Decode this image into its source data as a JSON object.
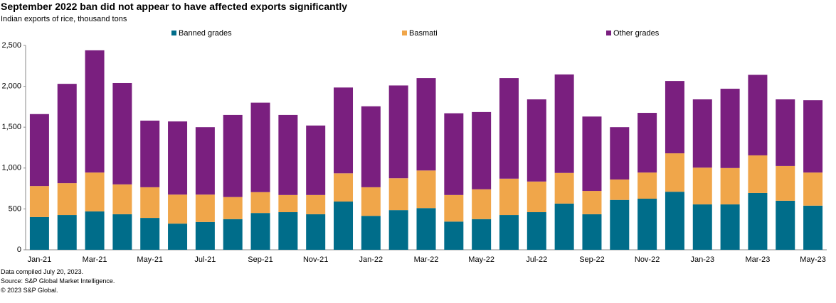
{
  "chart_data": {
    "type": "stacked_bar",
    "title": "September 2022 ban did not appear to have affected exports significantly",
    "subtitle": "Indian  exports of rice, thousand tons",
    "categories": [
      "Jan-21",
      null,
      "Mar-21",
      null,
      "May-21",
      null,
      "Jul-21",
      null,
      "Sep-21",
      null,
      "Nov-21",
      null,
      "Jan-22",
      null,
      "Mar-22",
      null,
      "May-22",
      null,
      "Jul-22",
      null,
      "Sep-22",
      null,
      "Nov-22",
      null,
      "Jan-23",
      null,
      "Mar-23",
      null,
      "May-23"
    ],
    "series": [
      {
        "name": "Banned grades",
        "color": "#006d8a",
        "values": [
          400,
          425,
          470,
          435,
          390,
          320,
          340,
          375,
          450,
          460,
          435,
          590,
          415,
          485,
          510,
          345,
          375,
          425,
          460,
          565,
          435,
          610,
          625,
          710,
          555,
          555,
          695,
          600,
          540
        ]
      },
      {
        "name": "Basmati",
        "color": "#f0a64a",
        "values": [
          380,
          390,
          475,
          365,
          375,
          355,
          335,
          270,
          255,
          210,
          235,
          345,
          350,
          390,
          460,
          325,
          365,
          445,
          375,
          375,
          285,
          250,
          320,
          470,
          450,
          445,
          460,
          425,
          405
        ]
      },
      {
        "name": "Other grades",
        "color": "#7a1f7f",
        "values": [
          880,
          1215,
          1495,
          1240,
          815,
          895,
          825,
          1005,
          1095,
          980,
          850,
          1050,
          990,
          1135,
          1130,
          1000,
          945,
          1230,
          1005,
          1205,
          910,
          640,
          730,
          885,
          835,
          970,
          985,
          815,
          885
        ]
      }
    ],
    "ylim": [
      0,
      2500
    ],
    "yticks": [
      0,
      500,
      {
        "value": 1000,
        "label": "1,000"
      },
      {
        "value": 1500,
        "label": "1,500"
      },
      {
        "value": 2000,
        "label": "2,000"
      },
      {
        "value": 2500,
        "label": "2,500"
      }
    ],
    "grid": false,
    "notes": [
      "Data compiled July 20, 2023.",
      "Source: S&P Global Market Intelligence.",
      "© 2023 S&P Global."
    ]
  }
}
